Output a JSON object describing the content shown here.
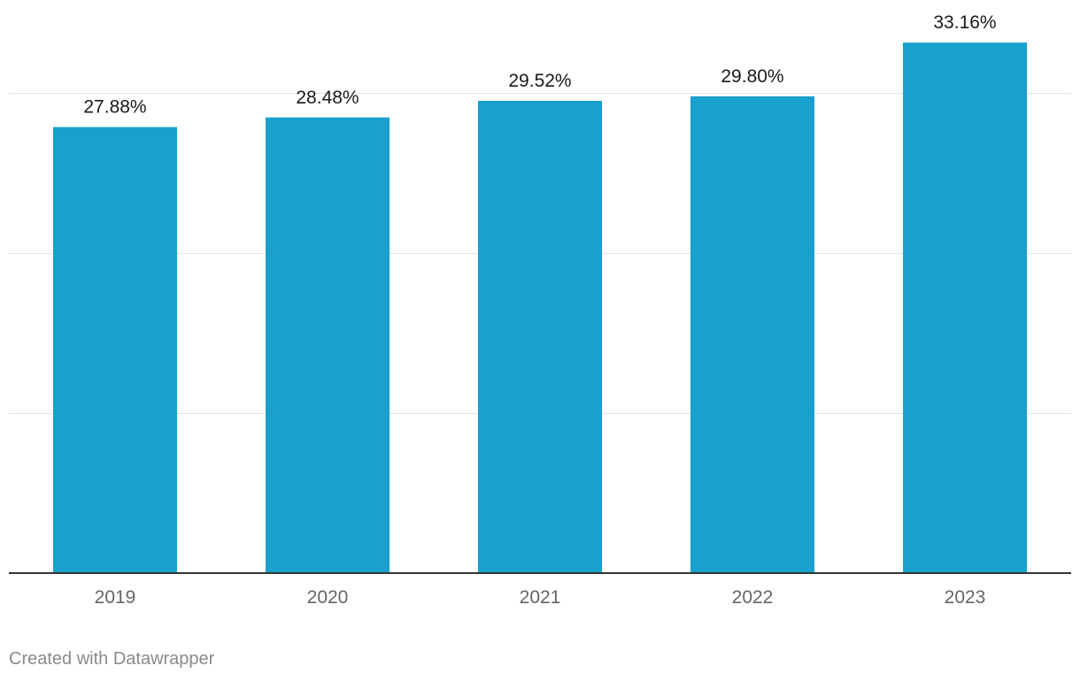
{
  "chart_data": {
    "type": "bar",
    "categories": [
      "2019",
      "2020",
      "2021",
      "2022",
      "2023"
    ],
    "values": [
      27.88,
      28.48,
      29.52,
      29.8,
      33.16
    ],
    "value_labels": [
      "27.88%",
      "28.48%",
      "29.52%",
      "29.80%",
      "33.16%"
    ],
    "title": "",
    "xlabel": "",
    "ylabel": "",
    "ylim": [
      0,
      36
    ],
    "gridlines_at": [
      10,
      20,
      30
    ],
    "grid": true,
    "bar_color": "#1aa0cc"
  },
  "footer": {
    "credit": "Created with Datawrapper"
  }
}
